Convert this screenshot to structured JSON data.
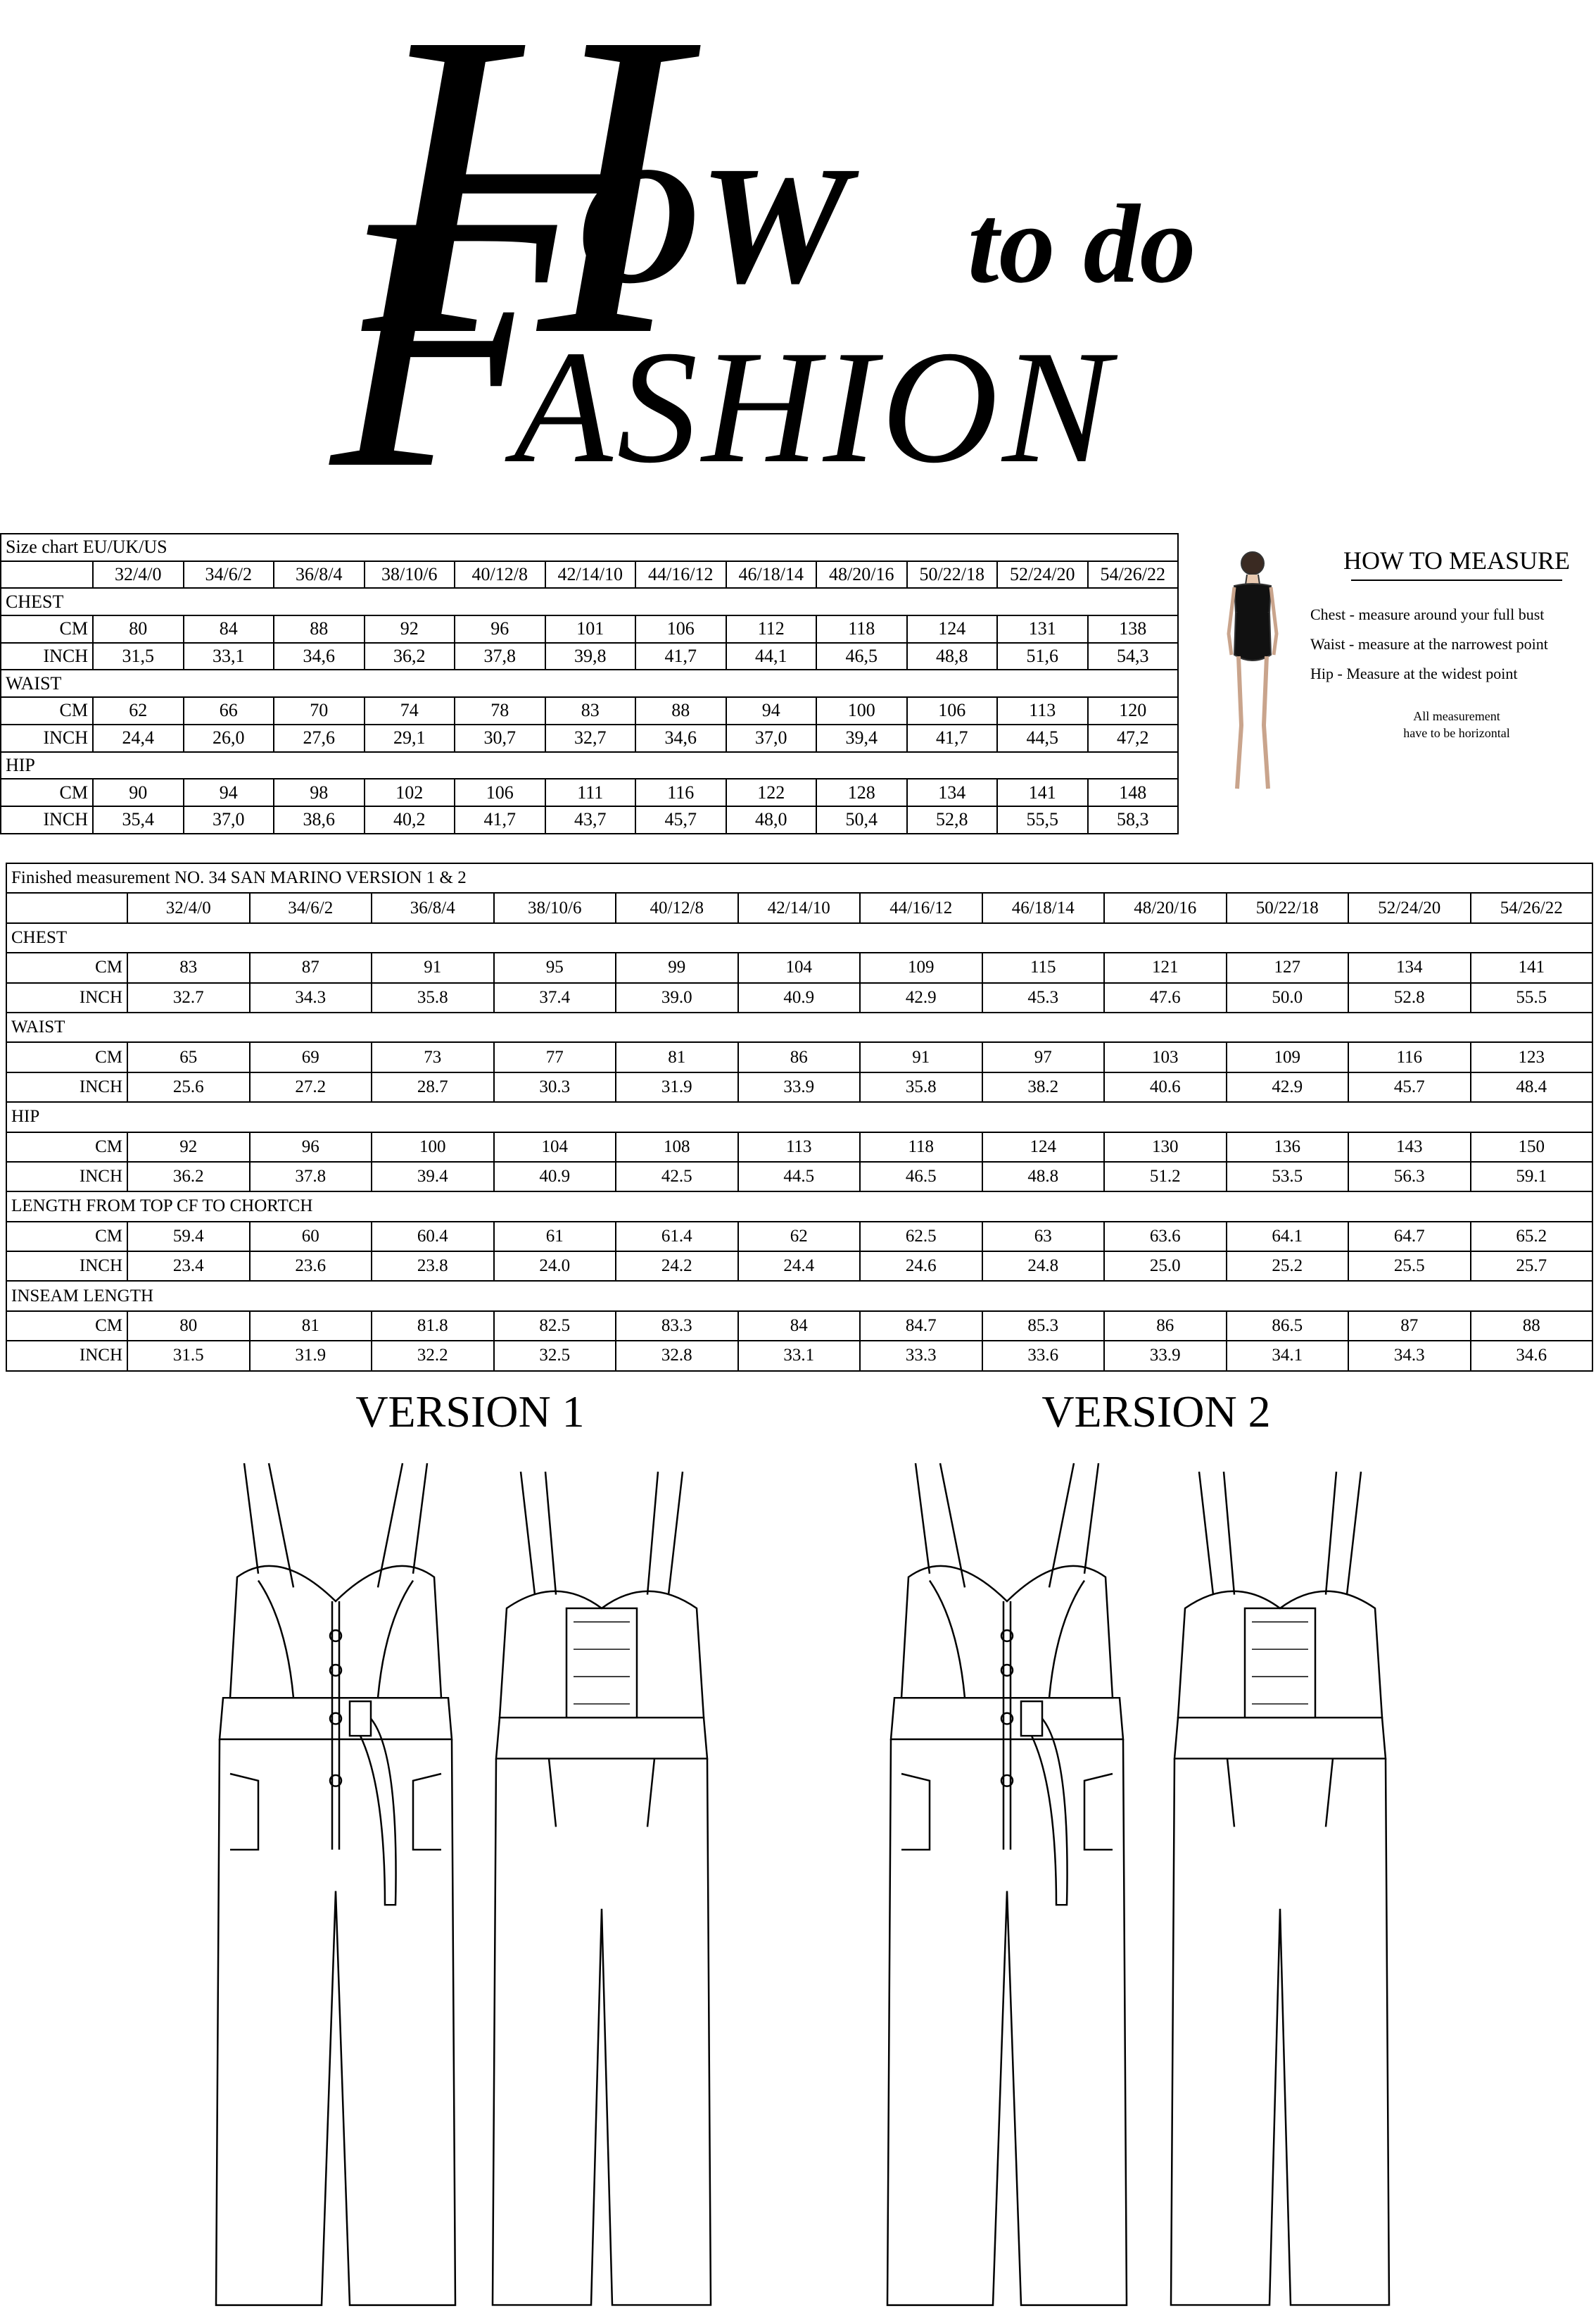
{
  "logo": {
    "h": "H",
    "ow": "OW",
    "to_do": "to do",
    "f": "F",
    "ashion": "ASHION"
  },
  "size_chart": {
    "title": "Size chart EU/UK/US",
    "sizes": [
      "32/4/0",
      "34/6/2",
      "36/8/4",
      "38/10/6",
      "40/12/8",
      "42/14/10",
      "44/16/12",
      "46/18/14",
      "48/20/16",
      "50/22/18",
      "52/24/20",
      "54/26/22"
    ],
    "sections": [
      {
        "name": "CHEST",
        "rows": [
          {
            "unit": "CM",
            "values": [
              "80",
              "84",
              "88",
              "92",
              "96",
              "101",
              "106",
              "112",
              "118",
              "124",
              "131",
              "138"
            ]
          },
          {
            "unit": "INCH",
            "values": [
              "31,5",
              "33,1",
              "34,6",
              "36,2",
              "37,8",
              "39,8",
              "41,7",
              "44,1",
              "46,5",
              "48,8",
              "51,6",
              "54,3"
            ]
          }
        ]
      },
      {
        "name": "WAIST",
        "rows": [
          {
            "unit": "CM",
            "values": [
              "62",
              "66",
              "70",
              "74",
              "78",
              "83",
              "88",
              "94",
              "100",
              "106",
              "113",
              "120"
            ]
          },
          {
            "unit": "INCH",
            "values": [
              "24,4",
              "26,0",
              "27,6",
              "29,1",
              "30,7",
              "32,7",
              "34,6",
              "37,0",
              "39,4",
              "41,7",
              "44,5",
              "47,2"
            ]
          }
        ]
      },
      {
        "name": "HIP",
        "rows": [
          {
            "unit": "CM",
            "values": [
              "90",
              "94",
              "98",
              "102",
              "106",
              "111",
              "116",
              "122",
              "128",
              "134",
              "141",
              "148"
            ]
          },
          {
            "unit": "INCH",
            "values": [
              "35,4",
              "37,0",
              "38,6",
              "40,2",
              "41,7",
              "43,7",
              "45,7",
              "48,0",
              "50,4",
              "52,8",
              "55,5",
              "58,3"
            ]
          }
        ]
      }
    ]
  },
  "how_to_measure": {
    "title": "HOW TO MEASURE",
    "lines": [
      "Chest - measure around your full bust",
      "Waist - measure at the narrowest point",
      "Hip  - Measure at the widest point"
    ],
    "note": [
      "All measurement",
      "have to be horizontal"
    ]
  },
  "finished": {
    "title": "Finished measurement NO. 34 SAN MARINO  VERSION 1 & 2",
    "sizes": [
      "32/4/0",
      "34/6/2",
      "36/8/4",
      "38/10/6",
      "40/12/8",
      "42/14/10",
      "44/16/12",
      "46/18/14",
      "48/20/16",
      "50/22/18",
      "52/24/20",
      "54/26/22"
    ],
    "sections": [
      {
        "name": "CHEST",
        "rows": [
          {
            "unit": "CM",
            "values": [
              "83",
              "87",
              "91",
              "95",
              "99",
              "104",
              "109",
              "115",
              "121",
              "127",
              "134",
              "141"
            ]
          },
          {
            "unit": "INCH",
            "values": [
              "32.7",
              "34.3",
              "35.8",
              "37.4",
              "39.0",
              "40.9",
              "42.9",
              "45.3",
              "47.6",
              "50.0",
              "52.8",
              "55.5"
            ]
          }
        ]
      },
      {
        "name": "WAIST",
        "rows": [
          {
            "unit": "CM",
            "values": [
              "65",
              "69",
              "73",
              "77",
              "81",
              "86",
              "91",
              "97",
              "103",
              "109",
              "116",
              "123"
            ]
          },
          {
            "unit": "INCH",
            "values": [
              "25.6",
              "27.2",
              "28.7",
              "30.3",
              "31.9",
              "33.9",
              "35.8",
              "38.2",
              "40.6",
              "42.9",
              "45.7",
              "48.4"
            ]
          }
        ]
      },
      {
        "name": "HIP",
        "rows": [
          {
            "unit": "CM",
            "values": [
              "92",
              "96",
              "100",
              "104",
              "108",
              "113",
              "118",
              "124",
              "130",
              "136",
              "143",
              "150"
            ]
          },
          {
            "unit": "INCH",
            "values": [
              "36.2",
              "37.8",
              "39.4",
              "40.9",
              "42.5",
              "44.5",
              "46.5",
              "48.8",
              "51.2",
              "53.5",
              "56.3",
              "59.1"
            ]
          }
        ]
      },
      {
        "name": "LENGTH FROM TOP CF TO CHORTCH",
        "rows": [
          {
            "unit": "CM",
            "values": [
              "59.4",
              "60",
              "60.4",
              "61",
              "61.4",
              "62",
              "62.5",
              "63",
              "63.6",
              "64.1",
              "64.7",
              "65.2"
            ]
          },
          {
            "unit": "INCH",
            "values": [
              "23.4",
              "23.6",
              "23.8",
              "24.0",
              "24.2",
              "24.4",
              "24.6",
              "24.8",
              "25.0",
              "25.2",
              "25.5",
              "25.7"
            ]
          }
        ]
      },
      {
        "name": "INSEAM LENGTH",
        "rows": [
          {
            "unit": "CM",
            "values": [
              "80",
              "81",
              "81.8",
              "82.5",
              "83.3",
              "84",
              "84.7",
              "85.3",
              "86",
              "86.5",
              "87",
              "88"
            ]
          },
          {
            "unit": "INCH",
            "values": [
              "31.5",
              "31.9",
              "32.2",
              "32.5",
              "32.8",
              "33.1",
              "33.3",
              "33.6",
              "33.9",
              "34.1",
              "34.3",
              "34.6"
            ]
          }
        ]
      }
    ]
  },
  "versions": [
    "VERSION 1",
    "VERSION 2"
  ]
}
